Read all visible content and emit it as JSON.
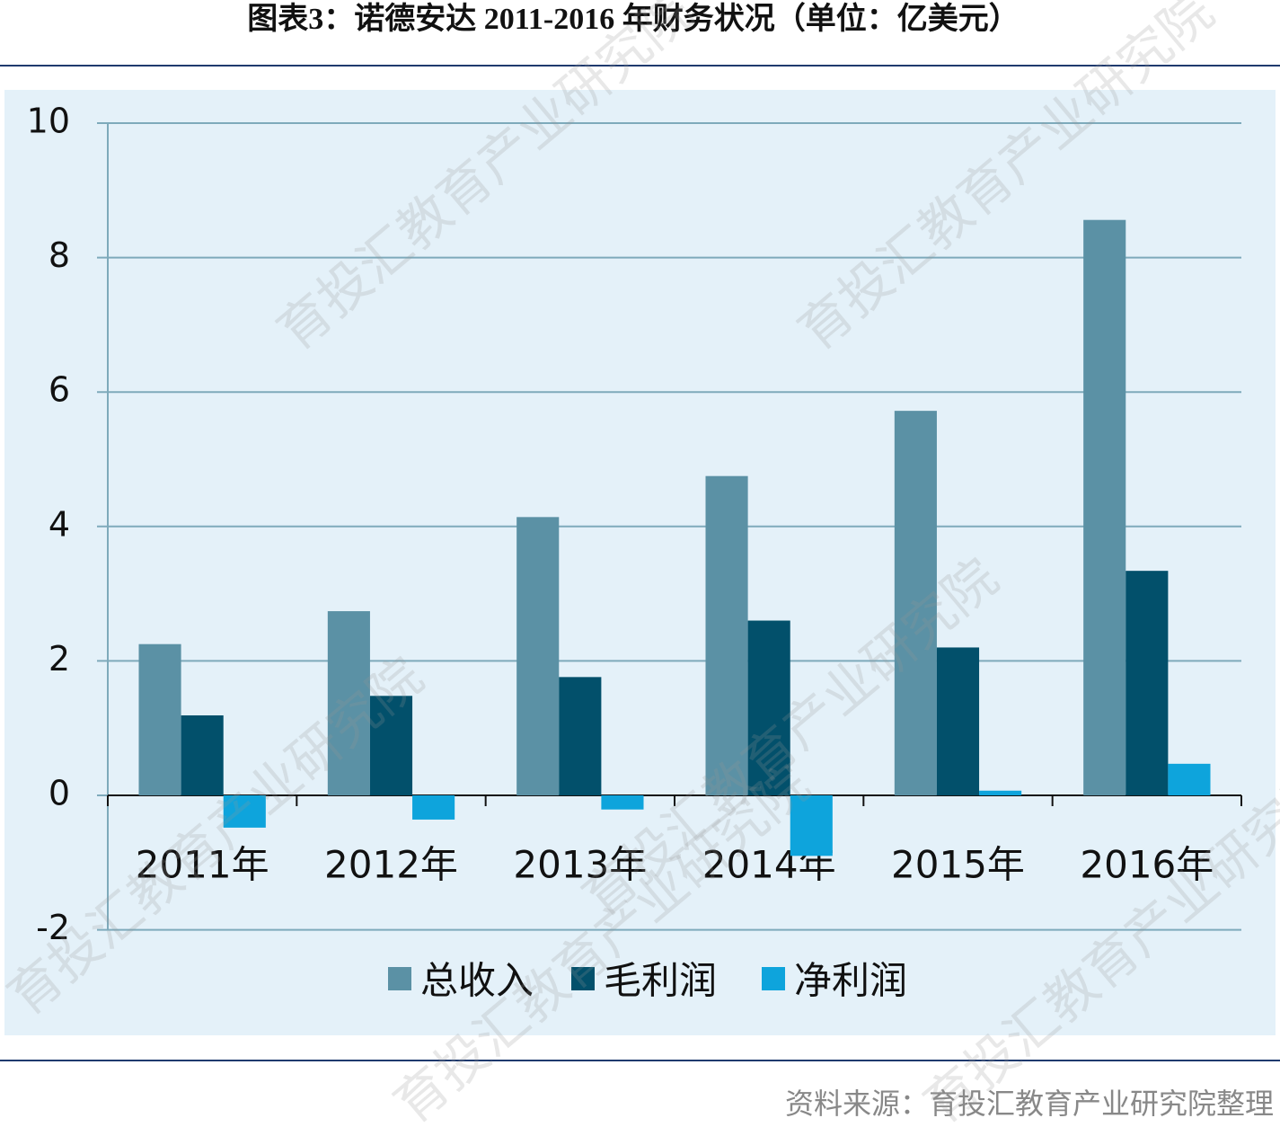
{
  "chart_data": {
    "type": "bar",
    "title": "图表3：诺德安达 2011-2016 年财务状况（单位：亿美元）",
    "categories": [
      "2011年",
      "2012年",
      "2013年",
      "2014年",
      "2015年",
      "2016年"
    ],
    "series": [
      {
        "name": "总收入",
        "color": "#5b91a5",
        "values": [
          2.25,
          2.74,
          4.14,
          4.75,
          5.72,
          8.56
        ]
      },
      {
        "name": "毛利润",
        "color": "#02506b",
        "values": [
          1.19,
          1.48,
          1.76,
          2.6,
          2.2,
          3.34
        ]
      },
      {
        "name": "净利润",
        "color": "#0ea4dc",
        "values": [
          -0.48,
          -0.36,
          -0.21,
          -0.9,
          0.07,
          0.47
        ]
      }
    ],
    "ylim": [
      -2,
      10
    ],
    "yticks": [
      -2,
      0,
      2,
      4,
      6,
      8,
      10
    ],
    "grid": true,
    "legend": "bottom",
    "source": "资料来源：育投汇教育产业研究院整理",
    "watermark": "育投汇教育产业研究院"
  }
}
